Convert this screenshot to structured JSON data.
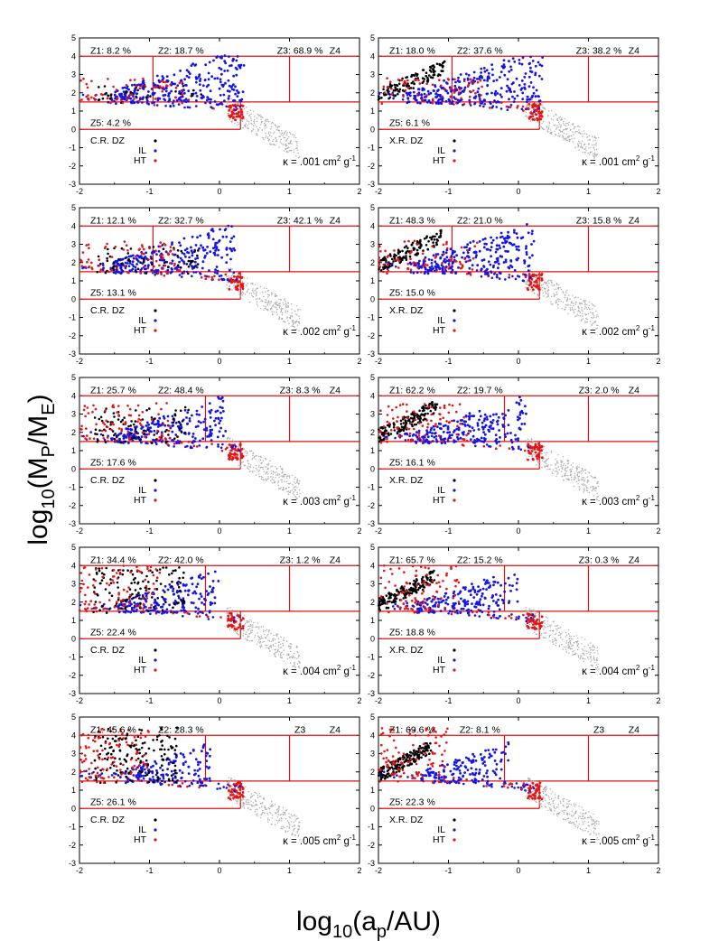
{
  "figure": {
    "ylabel_main": "log",
    "ylabel_sub": "10",
    "ylabel_rest": "(M",
    "ylabel_sub2": "P",
    "ylabel_mid": "/M",
    "ylabel_sub3": "E",
    "ylabel_end": ")",
    "xlabel_main": "log",
    "xlabel_sub": "10",
    "xlabel_rest": "(a",
    "xlabel_sub2": "p",
    "xlabel_end": "/AU)"
  },
  "colors": {
    "dz": "#000000",
    "il": "#1414e6",
    "ht": "#e61414",
    "bg_points": "#a8a8a8",
    "zones": "#e01010"
  },
  "chart_data": [
    {
      "type": "scatter",
      "row": 0,
      "col": 0,
      "xlim": [
        -2,
        2
      ],
      "ylim": [
        -3,
        5
      ],
      "x_ticks": [
        "-2",
        "-1",
        "0",
        "1",
        "2"
      ],
      "y_ticks": [
        "-3",
        "-2",
        "-1",
        "0",
        "1",
        "2",
        "3",
        "4",
        "5"
      ],
      "zone_split": -0.95,
      "zones": {
        "z1": "Z1: 8.2 %",
        "z2": "Z2: 18.7 %",
        "z3": "Z3: 68.9 %",
        "z4": "Z4",
        "z5": "Z5: 4.2 %"
      },
      "legend": {
        "dz": "C.R. DZ",
        "il": "IL",
        "ht": "HT"
      },
      "kappa": "κ = .001 cm",
      "kappa_unit": "2",
      "kappa_tail": " g",
      "kappa_unit2": "-1",
      "legend_position": "bottom-left"
    },
    {
      "type": "scatter",
      "row": 0,
      "col": 1,
      "xlim": [
        -2,
        2
      ],
      "ylim": [
        -3,
        5
      ],
      "x_ticks": [
        "-2",
        "-1",
        "0",
        "1",
        "2"
      ],
      "y_ticks": [
        "-3",
        "-2",
        "-1",
        "0",
        "1",
        "2",
        "3",
        "4",
        "5"
      ],
      "zone_split": -0.95,
      "zones": {
        "z1": "Z1: 18.0 %",
        "z2": "Z2: 37.6 %",
        "z3": "Z3: 38.2 %",
        "z4": "Z4",
        "z5": "Z5: 6.1 %"
      },
      "legend": {
        "dz": "X.R. DZ",
        "il": "IL",
        "ht": "HT"
      },
      "kappa": "κ = .001 cm",
      "kappa_unit": "2",
      "kappa_tail": " g",
      "kappa_unit2": "-1",
      "legend_position": "bottom-left"
    },
    {
      "type": "scatter",
      "row": 1,
      "col": 0,
      "xlim": [
        -2,
        2
      ],
      "ylim": [
        -3,
        5
      ],
      "x_ticks": [
        "-2",
        "-1",
        "0",
        "1",
        "2"
      ],
      "y_ticks": [
        "-3",
        "-2",
        "-1",
        "0",
        "1",
        "2",
        "3",
        "4",
        "5"
      ],
      "zone_split": -0.95,
      "zones": {
        "z1": "Z1: 12.1 %",
        "z2": "Z2: 32.7 %",
        "z3": "Z3: 42.1 %",
        "z4": "Z4",
        "z5": "Z5: 13.1 %"
      },
      "legend": {
        "dz": "C.R. DZ",
        "il": "IL",
        "ht": "HT"
      },
      "kappa": "κ = .002 cm",
      "kappa_unit": "2",
      "kappa_tail": " g",
      "kappa_unit2": "-1",
      "legend_position": "bottom-left"
    },
    {
      "type": "scatter",
      "row": 1,
      "col": 1,
      "xlim": [
        -2,
        2
      ],
      "ylim": [
        -3,
        5
      ],
      "x_ticks": [
        "-2",
        "-1",
        "0",
        "1",
        "2"
      ],
      "y_ticks": [
        "-3",
        "-2",
        "-1",
        "0",
        "1",
        "2",
        "3",
        "4",
        "5"
      ],
      "zone_split": -0.95,
      "zones": {
        "z1": "Z1: 48.3 %",
        "z2": "Z2: 21.0 %",
        "z3": "Z3: 15.8 %",
        "z4": "Z4",
        "z5": "Z5: 15.0 %"
      },
      "legend": {
        "dz": "X.R. DZ",
        "il": "IL",
        "ht": "HT"
      },
      "kappa": "κ = .002 cm",
      "kappa_unit": "2",
      "kappa_tail": " g",
      "kappa_unit2": "-1",
      "legend_position": "bottom-left"
    },
    {
      "type": "scatter",
      "row": 2,
      "col": 0,
      "xlim": [
        -2,
        2
      ],
      "ylim": [
        -3,
        5
      ],
      "x_ticks": [
        "-2",
        "-1",
        "0",
        "1",
        "2"
      ],
      "y_ticks": [
        "-3",
        "-2",
        "-1",
        "0",
        "1",
        "2",
        "3",
        "4",
        "5"
      ],
      "zone_split": -0.2,
      "zones": {
        "z1": "Z1: 25.7 %",
        "z2": "Z2: 48.4 %",
        "z3": "Z3: 8.3 %",
        "z4": "Z4",
        "z5": "Z5: 17.6 %"
      },
      "legend": {
        "dz": "C.R. DZ",
        "il": "IL",
        "ht": "HT"
      },
      "kappa": "κ = .003 cm",
      "kappa_unit": "2",
      "kappa_tail": " g",
      "kappa_unit2": "-1",
      "legend_position": "bottom-left"
    },
    {
      "type": "scatter",
      "row": 2,
      "col": 1,
      "xlim": [
        -2,
        2
      ],
      "ylim": [
        -3,
        5
      ],
      "x_ticks": [
        "-2",
        "-1",
        "0",
        "1",
        "2"
      ],
      "y_ticks": [
        "-3",
        "-2",
        "-1",
        "0",
        "1",
        "2",
        "3",
        "4",
        "5"
      ],
      "zone_split": -0.2,
      "zones": {
        "z1": "Z1: 62.2 %",
        "z2": "Z2: 19.7 %",
        "z3": "Z3: 2.0 %",
        "z4": "Z4",
        "z5": "Z5: 16.1 %"
      },
      "legend": {
        "dz": "X.R. DZ",
        "il": "IL",
        "ht": "HT"
      },
      "kappa": "κ = .003 cm",
      "kappa_unit": "2",
      "kappa_tail": " g",
      "kappa_unit2": "-1",
      "legend_position": "bottom-left"
    },
    {
      "type": "scatter",
      "row": 3,
      "col": 0,
      "xlim": [
        -2,
        2
      ],
      "ylim": [
        -3,
        5
      ],
      "x_ticks": [
        "-2",
        "-1",
        "0",
        "1",
        "2"
      ],
      "y_ticks": [
        "-3",
        "-2",
        "-1",
        "0",
        "1",
        "2",
        "3",
        "4",
        "5"
      ],
      "zone_split": -0.2,
      "zones": {
        "z1": "Z1: 34.4 %",
        "z2": "Z2: 42.0 %",
        "z3": "Z3: 1.2 %",
        "z4": "Z4",
        "z5": "Z5: 22.4 %"
      },
      "legend": {
        "dz": "C.R. DZ",
        "il": "IL",
        "ht": "HT"
      },
      "kappa": "κ = .004 cm",
      "kappa_unit": "2",
      "kappa_tail": " g",
      "kappa_unit2": "-1",
      "legend_position": "bottom-left"
    },
    {
      "type": "scatter",
      "row": 3,
      "col": 1,
      "xlim": [
        -2,
        2
      ],
      "ylim": [
        -3,
        5
      ],
      "x_ticks": [
        "-2",
        "-1",
        "0",
        "1",
        "2"
      ],
      "y_ticks": [
        "-3",
        "-2",
        "-1",
        "0",
        "1",
        "2",
        "3",
        "4",
        "5"
      ],
      "zone_split": -0.2,
      "zones": {
        "z1": "Z1: 65.7 %",
        "z2": "Z2: 15.2 %",
        "z3": "Z3: 0.3 %",
        "z4": "Z4",
        "z5": "Z5: 18.8 %"
      },
      "legend": {
        "dz": "X.R. DZ",
        "il": "IL",
        "ht": "HT"
      },
      "kappa": "κ = .004 cm",
      "kappa_unit": "2",
      "kappa_tail": " g",
      "kappa_unit2": "-1",
      "legend_position": "bottom-left"
    },
    {
      "type": "scatter",
      "row": 4,
      "col": 0,
      "xlim": [
        -2,
        2
      ],
      "ylim": [
        -3,
        5
      ],
      "x_ticks": [
        "-2",
        "-1",
        "0",
        "1",
        "2"
      ],
      "y_ticks": [
        "-3",
        "-2",
        "-1",
        "0",
        "1",
        "2",
        "3",
        "4",
        "5"
      ],
      "zone_split": -0.2,
      "zones": {
        "z1": "Z1: 45.6 %",
        "z2": "Z2: 28.3 %",
        "z3": "Z3",
        "z4": "Z4",
        "z5": "Z5: 26.1 %"
      },
      "legend": {
        "dz": "C.R. DZ",
        "il": "IL",
        "ht": "HT"
      },
      "kappa": "κ = .005 cm",
      "kappa_unit": "2",
      "kappa_tail": " g",
      "kappa_unit2": "-1",
      "legend_position": "bottom-left"
    },
    {
      "type": "scatter",
      "row": 4,
      "col": 1,
      "xlim": [
        -2,
        2
      ],
      "ylim": [
        -3,
        5
      ],
      "x_ticks": [
        "-2",
        "-1",
        "0",
        "1",
        "2"
      ],
      "y_ticks": [
        "-3",
        "-2",
        "-1",
        "0",
        "1",
        "2",
        "3",
        "4",
        "5"
      ],
      "zone_split": -0.2,
      "zones": {
        "z1": "Z1: 69.6 %",
        "z2": "Z2: 8.1 %",
        "z3": "Z3",
        "z4": "Z4",
        "z5": "Z5: 22.3 %"
      },
      "legend": {
        "dz": "X.R. DZ",
        "il": "IL",
        "ht": "HT"
      },
      "kappa": "κ = .005 cm",
      "kappa_unit": "2",
      "kappa_tail": " g",
      "kappa_unit2": "-1",
      "legend_position": "bottom-left"
    }
  ]
}
